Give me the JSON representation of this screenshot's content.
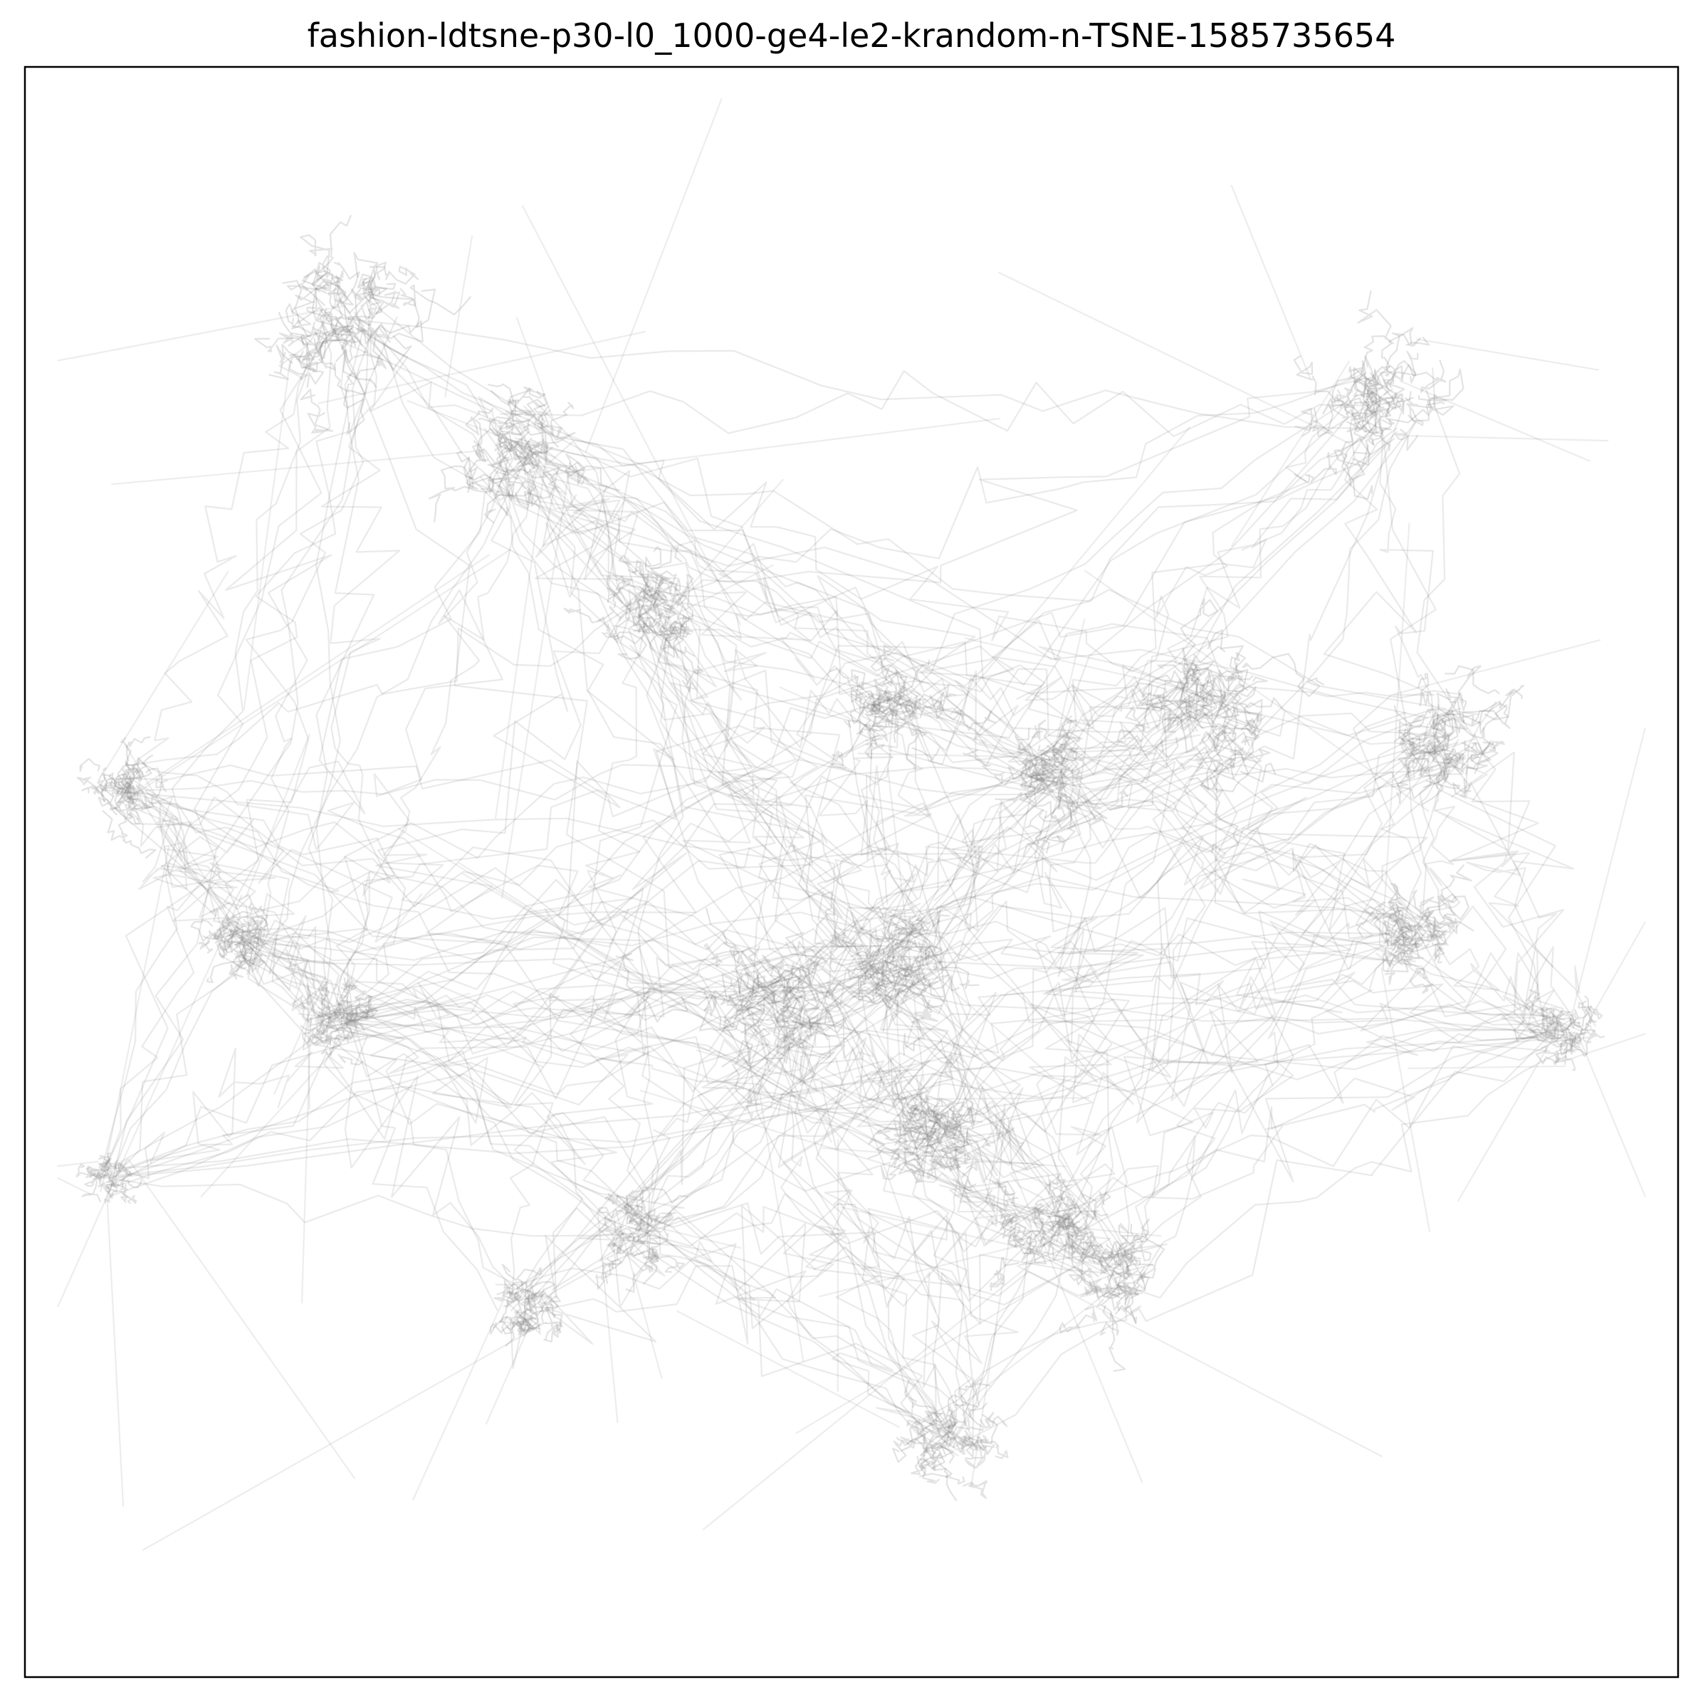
{
  "chart_data": {
    "type": "line",
    "title": "fashion-ldtsne-p30-l0_1000-ge4-le2-krandom-n-TSNE-1585735654",
    "xlabel": "",
    "ylabel": "",
    "xticks": [],
    "yticks": [],
    "grid": false,
    "legend": "none",
    "xlim": [
      0,
      100
    ],
    "ylim": [
      0,
      100
    ],
    "line_color": "#7f7f7f",
    "frame_color": "#000000",
    "background": "#ffffff",
    "clusters": [
      {
        "x": 19,
        "y": 84,
        "spread": 6
      },
      {
        "x": 30,
        "y": 76,
        "spread": 5
      },
      {
        "x": 6,
        "y": 55,
        "spread": 3
      },
      {
        "x": 13,
        "y": 46,
        "spread": 3
      },
      {
        "x": 19,
        "y": 41,
        "spread": 3
      },
      {
        "x": 5,
        "y": 31,
        "spread": 2
      },
      {
        "x": 30,
        "y": 23,
        "spread": 3
      },
      {
        "x": 37,
        "y": 28,
        "spread": 3
      },
      {
        "x": 38,
        "y": 66,
        "spread": 4
      },
      {
        "x": 52,
        "y": 60,
        "spread": 4
      },
      {
        "x": 53,
        "y": 45,
        "spread": 5
      },
      {
        "x": 55,
        "y": 33,
        "spread": 5
      },
      {
        "x": 62,
        "y": 28,
        "spread": 4
      },
      {
        "x": 62,
        "y": 56,
        "spread": 4
      },
      {
        "x": 82,
        "y": 79,
        "spread": 5
      },
      {
        "x": 86,
        "y": 58,
        "spread": 5
      },
      {
        "x": 84,
        "y": 46,
        "spread": 4
      },
      {
        "x": 93,
        "y": 40,
        "spread": 3
      },
      {
        "x": 56,
        "y": 15,
        "spread": 4
      },
      {
        "x": 66,
        "y": 25,
        "spread": 4
      },
      {
        "x": 71,
        "y": 60,
        "spread": 6
      },
      {
        "x": 45,
        "y": 42,
        "spread": 6
      }
    ]
  }
}
